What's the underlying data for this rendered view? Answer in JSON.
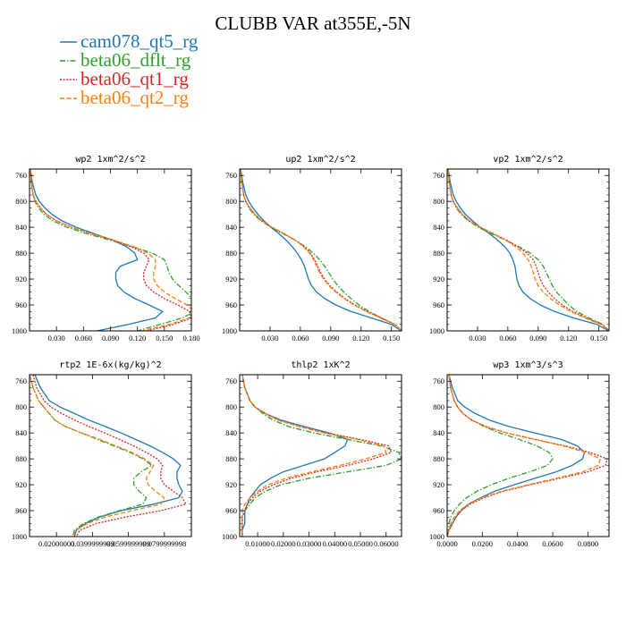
{
  "figure": {
    "title": "CLUBB VAR at355E,-5N"
  },
  "legend": [
    {
      "name": "cam078_qt5_rg",
      "color": "#1f77b4",
      "dash": "solid"
    },
    {
      "name": "beta06_dflt_rg",
      "color": "#2ca02c",
      "dash": "dashdot"
    },
    {
      "name": "beta06_qt1_rg",
      "color": "#d62728",
      "dash": "dotted"
    },
    {
      "name": "beta06_qt2_rg",
      "color": "#ff7f0e",
      "dash": "dashed"
    }
  ],
  "chart_data": [
    {
      "type": "line",
      "title": "wp2  1xm^2/s^2",
      "xlim": [
        0,
        0.18
      ],
      "ylim": [
        750,
        1000
      ],
      "yreverse": true,
      "xticks": [
        0.03,
        0.06,
        0.09,
        0.12,
        0.15,
        0.18
      ],
      "xtick_labels": [
        "0.030",
        "0.060",
        "0.090",
        "0.120",
        "0.150",
        "0.180"
      ],
      "yticks": [
        760,
        800,
        840,
        880,
        920,
        960,
        1000
      ],
      "y": [
        750,
        770,
        790,
        800,
        810,
        820,
        830,
        840,
        850,
        860,
        870,
        880,
        890,
        900,
        910,
        920,
        930,
        940,
        950,
        960,
        970,
        980,
        990,
        1000
      ],
      "series": [
        {
          "values": [
            0.001,
            0.003,
            0.007,
            0.011,
            0.017,
            0.025,
            0.036,
            0.052,
            0.072,
            0.093,
            0.108,
            0.117,
            0.12,
            0.101,
            0.096,
            0.096,
            0.098,
            0.105,
            0.117,
            0.133,
            0.148,
            0.14,
            0.11,
            0.075
          ]
        },
        {
          "values": [
            0.001,
            0.002,
            0.004,
            0.006,
            0.01,
            0.016,
            0.026,
            0.042,
            0.064,
            0.09,
            0.115,
            0.137,
            0.15,
            0.153,
            0.155,
            0.159,
            0.166,
            0.174,
            0.181,
            0.186,
            0.184,
            0.17,
            0.145,
            0.12
          ]
        },
        {
          "values": [
            0.001,
            0.002,
            0.004,
            0.007,
            0.012,
            0.019,
            0.03,
            0.047,
            0.069,
            0.093,
            0.113,
            0.127,
            0.133,
            0.13,
            0.127,
            0.127,
            0.13,
            0.138,
            0.15,
            0.165,
            0.178,
            0.18,
            0.16,
            0.13
          ]
        },
        {
          "values": [
            0.001,
            0.002,
            0.004,
            0.007,
            0.012,
            0.019,
            0.03,
            0.047,
            0.069,
            0.094,
            0.116,
            0.132,
            0.14,
            0.14,
            0.138,
            0.138,
            0.142,
            0.15,
            0.162,
            0.175,
            0.183,
            0.178,
            0.155,
            0.125
          ]
        }
      ]
    },
    {
      "type": "line",
      "title": "up2  1xm^2/s^2",
      "xlim": [
        0,
        0.16
      ],
      "ylim": [
        750,
        1000
      ],
      "yreverse": true,
      "xticks": [
        0.03,
        0.06,
        0.09,
        0.12,
        0.15
      ],
      "xtick_labels": [
        "0.030",
        "0.060",
        "0.090",
        "0.120",
        "0.150"
      ],
      "yticks": [
        760,
        800,
        840,
        880,
        920,
        960,
        1000
      ],
      "y": [
        750,
        770,
        790,
        800,
        810,
        820,
        830,
        840,
        850,
        860,
        870,
        880,
        890,
        900,
        910,
        920,
        930,
        940,
        950,
        960,
        970,
        980,
        990,
        1000
      ],
      "series": [
        {
          "values": [
            0.001,
            0.003,
            0.006,
            0.009,
            0.013,
            0.018,
            0.024,
            0.031,
            0.039,
            0.046,
            0.052,
            0.057,
            0.061,
            0.064,
            0.066,
            0.068,
            0.071,
            0.076,
            0.084,
            0.095,
            0.11,
            0.13,
            0.15,
            0.16
          ]
        },
        {
          "values": [
            0.001,
            0.002,
            0.004,
            0.006,
            0.009,
            0.014,
            0.021,
            0.031,
            0.043,
            0.055,
            0.065,
            0.073,
            0.079,
            0.084,
            0.088,
            0.092,
            0.097,
            0.103,
            0.11,
            0.118,
            0.128,
            0.14,
            0.153,
            0.16
          ]
        },
        {
          "values": [
            0.001,
            0.002,
            0.004,
            0.006,
            0.01,
            0.015,
            0.022,
            0.032,
            0.044,
            0.055,
            0.064,
            0.07,
            0.074,
            0.077,
            0.08,
            0.084,
            0.089,
            0.096,
            0.104,
            0.114,
            0.126,
            0.14,
            0.154,
            0.16
          ]
        },
        {
          "values": [
            0.001,
            0.002,
            0.004,
            0.006,
            0.01,
            0.015,
            0.022,
            0.032,
            0.044,
            0.055,
            0.063,
            0.069,
            0.073,
            0.076,
            0.079,
            0.083,
            0.088,
            0.095,
            0.103,
            0.113,
            0.125,
            0.139,
            0.153,
            0.16
          ]
        }
      ]
    },
    {
      "type": "line",
      "title": "vp2  1xm^2/s^2",
      "xlim": [
        0,
        0.16
      ],
      "ylim": [
        750,
        1000
      ],
      "yreverse": true,
      "xticks": [
        0.03,
        0.06,
        0.09,
        0.12,
        0.15
      ],
      "xtick_labels": [
        "0.030",
        "0.060",
        "0.090",
        "0.120",
        "0.150"
      ],
      "yticks": [
        760,
        800,
        840,
        880,
        920,
        960,
        1000
      ],
      "y": [
        750,
        770,
        790,
        800,
        810,
        820,
        830,
        840,
        850,
        860,
        870,
        880,
        890,
        900,
        910,
        920,
        930,
        940,
        950,
        960,
        970,
        980,
        990,
        1000
      ],
      "series": [
        {
          "values": [
            0.001,
            0.003,
            0.006,
            0.009,
            0.013,
            0.018,
            0.025,
            0.033,
            0.042,
            0.05,
            0.057,
            0.062,
            0.065,
            0.067,
            0.068,
            0.069,
            0.071,
            0.075,
            0.082,
            0.092,
            0.106,
            0.125,
            0.148,
            0.16
          ]
        },
        {
          "values": [
            0.001,
            0.002,
            0.004,
            0.006,
            0.009,
            0.014,
            0.021,
            0.031,
            0.044,
            0.058,
            0.071,
            0.082,
            0.09,
            0.095,
            0.098,
            0.101,
            0.104,
            0.108,
            0.114,
            0.12,
            0.128,
            0.14,
            0.154,
            0.16
          ]
        },
        {
          "values": [
            0.001,
            0.002,
            0.004,
            0.006,
            0.01,
            0.015,
            0.022,
            0.033,
            0.046,
            0.059,
            0.07,
            0.079,
            0.085,
            0.088,
            0.09,
            0.092,
            0.095,
            0.1,
            0.106,
            0.114,
            0.124,
            0.138,
            0.153,
            0.16
          ]
        },
        {
          "values": [
            0.001,
            0.002,
            0.004,
            0.006,
            0.01,
            0.015,
            0.022,
            0.033,
            0.046,
            0.058,
            0.068,
            0.075,
            0.08,
            0.083,
            0.085,
            0.087,
            0.09,
            0.095,
            0.102,
            0.111,
            0.122,
            0.136,
            0.152,
            0.16
          ]
        }
      ]
    },
    {
      "type": "line",
      "title": "rtp2  1E-6x(kg/kg)^2",
      "xlim": [
        0.005,
        0.095
      ],
      "ylim": [
        750,
        1000
      ],
      "yreverse": true,
      "xticks": [
        0.02,
        0.04,
        0.06,
        0.08
      ],
      "xtick_labels": [
        "0.02000000",
        "0.0399999999",
        "0.0599999999",
        "0.0799999998"
      ],
      "yticks": [
        760,
        800,
        840,
        880,
        920,
        960,
        1000
      ],
      "y": [
        750,
        770,
        790,
        800,
        810,
        820,
        830,
        840,
        850,
        860,
        870,
        880,
        890,
        900,
        910,
        920,
        930,
        940,
        950,
        960,
        970,
        980,
        990,
        1000
      ],
      "series": [
        {
          "values": [
            0.008,
            0.011,
            0.016,
            0.022,
            0.03,
            0.038,
            0.047,
            0.056,
            0.064,
            0.072,
            0.079,
            0.085,
            0.089,
            0.087,
            0.087,
            0.088,
            0.09,
            0.088,
            0.074,
            0.056,
            0.044,
            0.036,
            0.031,
            0.03
          ]
        },
        {
          "values": [
            0.005,
            0.007,
            0.01,
            0.013,
            0.016,
            0.019,
            0.025,
            0.034,
            0.043,
            0.052,
            0.061,
            0.068,
            0.073,
            0.067,
            0.063,
            0.063,
            0.066,
            0.07,
            0.068,
            0.055,
            0.043,
            0.035,
            0.03,
            0.029
          ]
        },
        {
          "values": [
            0.007,
            0.009,
            0.013,
            0.017,
            0.023,
            0.03,
            0.038,
            0.047,
            0.055,
            0.063,
            0.07,
            0.076,
            0.079,
            0.078,
            0.078,
            0.08,
            0.085,
            0.09,
            0.092,
            0.078,
            0.058,
            0.042,
            0.033,
            0.031
          ]
        },
        {
          "values": [
            0.005,
            0.007,
            0.01,
            0.013,
            0.016,
            0.019,
            0.025,
            0.034,
            0.044,
            0.053,
            0.062,
            0.069,
            0.074,
            0.072,
            0.07,
            0.071,
            0.075,
            0.08,
            0.078,
            0.062,
            0.047,
            0.037,
            0.031,
            0.029
          ]
        }
      ]
    },
    {
      "type": "line",
      "title": "thlp2  1xK^2",
      "xlim": [
        0.003,
        0.066
      ],
      "ylim": [
        750,
        1000
      ],
      "yreverse": true,
      "xticks": [
        0.01,
        0.02,
        0.03,
        0.04,
        0.05,
        0.06
      ],
      "xtick_labels": [
        "0.01000",
        "0.02000",
        "0.03000",
        "0.04000",
        "0.05000",
        "0.06000"
      ],
      "yticks": [
        760,
        800,
        840,
        880,
        920,
        960,
        1000
      ],
      "y": [
        750,
        770,
        790,
        800,
        810,
        820,
        830,
        840,
        850,
        860,
        870,
        880,
        890,
        900,
        910,
        920,
        930,
        940,
        950,
        960,
        970,
        980,
        990,
        1000
      ],
      "series": [
        {
          "values": [
            0.004,
            0.005,
            0.007,
            0.009,
            0.013,
            0.019,
            0.028,
            0.038,
            0.045,
            0.044,
            0.04,
            0.036,
            0.028,
            0.02,
            0.015,
            0.011,
            0.009,
            0.007,
            0.006,
            0.005,
            0.005,
            0.005,
            0.004,
            0.004
          ]
        },
        {
          "values": [
            0.004,
            0.005,
            0.007,
            0.009,
            0.012,
            0.016,
            0.022,
            0.032,
            0.045,
            0.058,
            0.065,
            0.066,
            0.06,
            0.045,
            0.03,
            0.019,
            0.013,
            0.009,
            0.007,
            0.005,
            0.004,
            0.004,
            0.004,
            0.004
          ]
        },
        {
          "values": [
            0.004,
            0.005,
            0.007,
            0.009,
            0.013,
            0.018,
            0.026,
            0.037,
            0.05,
            0.061,
            0.062,
            0.055,
            0.045,
            0.033,
            0.023,
            0.016,
            0.011,
            0.008,
            0.006,
            0.005,
            0.004,
            0.004,
            0.004,
            0.004
          ]
        },
        {
          "values": [
            0.004,
            0.005,
            0.007,
            0.009,
            0.013,
            0.018,
            0.026,
            0.036,
            0.049,
            0.059,
            0.06,
            0.052,
            0.042,
            0.031,
            0.021,
            0.014,
            0.01,
            0.007,
            0.005,
            0.004,
            0.004,
            0.004,
            0.004,
            0.004
          ]
        }
      ]
    },
    {
      "type": "line",
      "title": "wp3  1xm^3/s^3",
      "xlim": [
        0,
        0.092
      ],
      "ylim": [
        750,
        1000
      ],
      "yreverse": true,
      "xticks": [
        0,
        0.02,
        0.04,
        0.06,
        0.08
      ],
      "xtick_labels": [
        "0.0000",
        "0.0200",
        "0.0400",
        "0.0600",
        "0.0800"
      ],
      "yticks": [
        760,
        800,
        840,
        880,
        920,
        960,
        1000
      ],
      "y": [
        750,
        770,
        790,
        800,
        810,
        820,
        830,
        840,
        850,
        860,
        870,
        880,
        890,
        900,
        910,
        920,
        930,
        940,
        950,
        960,
        970,
        980,
        990,
        1000
      ],
      "series": [
        {
          "values": [
            0.001,
            0.003,
            0.006,
            0.01,
            0.016,
            0.024,
            0.035,
            0.05,
            0.065,
            0.074,
            0.078,
            0.077,
            0.071,
            0.062,
            0.05,
            0.038,
            0.027,
            0.019,
            0.012,
            0.008,
            0.005,
            0.003,
            0.001,
            0.0
          ]
        },
        {
          "values": [
            0.001,
            0.002,
            0.004,
            0.006,
            0.009,
            0.014,
            0.021,
            0.03,
            0.041,
            0.051,
            0.058,
            0.06,
            0.057,
            0.047,
            0.035,
            0.025,
            0.017,
            0.011,
            0.007,
            0.004,
            0.002,
            0.001,
            0.001,
            0.0
          ]
        },
        {
          "values": [
            0.001,
            0.002,
            0.004,
            0.006,
            0.009,
            0.014,
            0.022,
            0.034,
            0.05,
            0.067,
            0.081,
            0.091,
            0.09,
            0.08,
            0.064,
            0.047,
            0.032,
            0.021,
            0.013,
            0.008,
            0.005,
            0.003,
            0.001,
            0.0
          ]
        },
        {
          "values": [
            0.001,
            0.002,
            0.004,
            0.006,
            0.009,
            0.014,
            0.022,
            0.034,
            0.05,
            0.066,
            0.079,
            0.087,
            0.086,
            0.077,
            0.062,
            0.046,
            0.031,
            0.02,
            0.012,
            0.007,
            0.004,
            0.002,
            0.001,
            0.0
          ]
        }
      ]
    }
  ]
}
